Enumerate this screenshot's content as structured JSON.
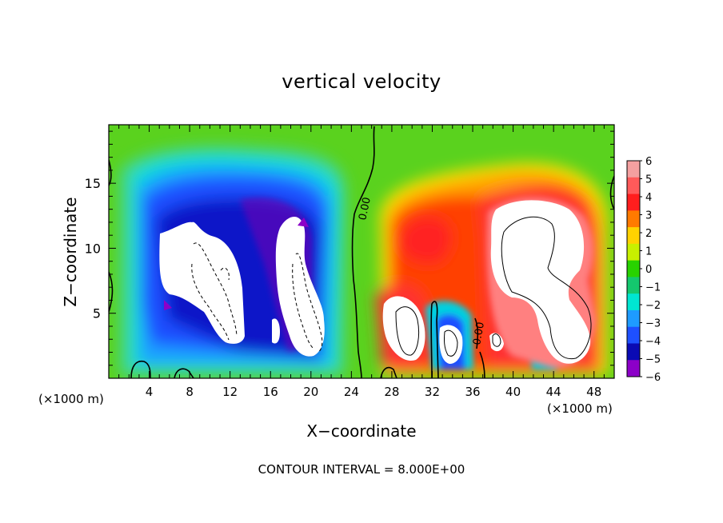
{
  "chart_data": {
    "type": "heatmap",
    "title": "vertical velocity",
    "xlabel": "X−coordinate",
    "ylabel": "Z−coordinate",
    "x_unit_left": "(×1000 m)",
    "x_unit_right": "(×1000 m)",
    "x_ticks": [
      "4",
      "8",
      "12",
      "16",
      "20",
      "24",
      "28",
      "32",
      "36",
      "40",
      "44",
      "48"
    ],
    "y_ticks": [
      "5",
      "10",
      "15"
    ],
    "xlim": [
      0,
      50
    ],
    "ylim": [
      0,
      19.5
    ],
    "colorbar": {
      "labels": [
        "6",
        "5",
        "4",
        "3",
        "2",
        "1",
        "0",
        "−1",
        "−2",
        "−3",
        "−4",
        "−5",
        "−6"
      ],
      "range": [
        -6,
        6
      ],
      "colors": [
        "#f4a0a0",
        "#ff5a5a",
        "#ff1e1e",
        "#ff7a00",
        "#ffd200",
        "#c8f000",
        "#28d200",
        "#14c86e",
        "#00e6d2",
        "#1e9bff",
        "#1e50ff",
        "#0a0ab4",
        "#8c00c8"
      ]
    },
    "contour_label": "0.00",
    "footer": "CONTOUR INTERVAL = 8.000E+00"
  }
}
